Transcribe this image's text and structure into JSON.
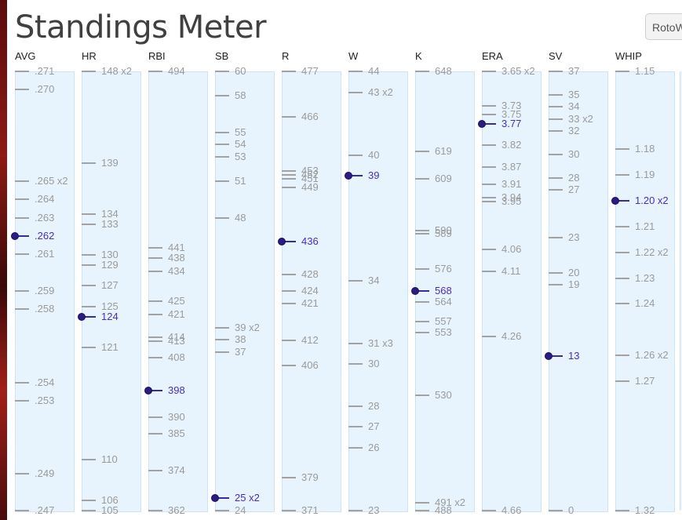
{
  "page": {
    "title": "Standings Meter"
  },
  "header": {
    "button_label": "RotoW"
  },
  "meter": {
    "range_top": 91,
    "range_bottom": 651,
    "columns": [
      {
        "key": "avg",
        "label": "AVG",
        "values": [
          {
            "text": ".271",
            "v": 0.271
          },
          {
            "text": ".270",
            "v": 0.27
          },
          {
            "text": ".265 x2",
            "v": 0.265
          },
          {
            "text": ".264",
            "v": 0.264
          },
          {
            "text": ".263",
            "v": 0.263
          },
          {
            "text": ".262",
            "v": 0.262,
            "mine": true
          },
          {
            "text": ".261",
            "v": 0.261
          },
          {
            "text": ".259",
            "v": 0.259
          },
          {
            "text": ".258",
            "v": 0.258
          },
          {
            "text": ".254",
            "v": 0.254
          },
          {
            "text": ".253",
            "v": 0.253
          },
          {
            "text": ".249",
            "v": 0.249
          },
          {
            "text": ".247",
            "v": 0.247
          }
        ]
      },
      {
        "key": "hr",
        "label": "HR",
        "values": [
          {
            "text": "148 x2",
            "v": 148
          },
          {
            "text": "139",
            "v": 139
          },
          {
            "text": "134",
            "v": 134
          },
          {
            "text": "133",
            "v": 133
          },
          {
            "text": "130",
            "v": 130
          },
          {
            "text": "129",
            "v": 129
          },
          {
            "text": "127",
            "v": 127
          },
          {
            "text": "125",
            "v": 125
          },
          {
            "text": "124",
            "v": 124,
            "mine": true
          },
          {
            "text": "121",
            "v": 121
          },
          {
            "text": "110",
            "v": 110
          },
          {
            "text": "106",
            "v": 106
          },
          {
            "text": "105",
            "v": 105
          }
        ]
      },
      {
        "key": "rbi",
        "label": "RBI",
        "values": [
          {
            "text": "494",
            "v": 494
          },
          {
            "text": "441",
            "v": 441
          },
          {
            "text": "438",
            "v": 438
          },
          {
            "text": "434",
            "v": 434
          },
          {
            "text": "425",
            "v": 425
          },
          {
            "text": "421",
            "v": 421
          },
          {
            "text": "414",
            "v": 414
          },
          {
            "text": "413",
            "v": 413
          },
          {
            "text": "408",
            "v": 408
          },
          {
            "text": "398",
            "v": 398,
            "mine": true
          },
          {
            "text": "390",
            "v": 390
          },
          {
            "text": "385",
            "v": 385
          },
          {
            "text": "374",
            "v": 374
          },
          {
            "text": "362",
            "v": 362
          }
        ]
      },
      {
        "key": "sb",
        "label": "SB",
        "values": [
          {
            "text": "60",
            "v": 60
          },
          {
            "text": "58",
            "v": 58
          },
          {
            "text": "55",
            "v": 55
          },
          {
            "text": "54",
            "v": 54
          },
          {
            "text": "53",
            "v": 53
          },
          {
            "text": "51",
            "v": 51
          },
          {
            "text": "48",
            "v": 48
          },
          {
            "text": "39 x2",
            "v": 39
          },
          {
            "text": "38",
            "v": 38
          },
          {
            "text": "37",
            "v": 37
          },
          {
            "text": "25 x2",
            "v": 25,
            "mine": true
          },
          {
            "text": "24",
            "v": 24
          }
        ]
      },
      {
        "key": "r",
        "label": "R",
        "values": [
          {
            "text": "477",
            "v": 477
          },
          {
            "text": "466",
            "v": 466
          },
          {
            "text": "453",
            "v": 453
          },
          {
            "text": "452",
            "v": 452
          },
          {
            "text": "451",
            "v": 451
          },
          {
            "text": "449",
            "v": 449
          },
          {
            "text": "436",
            "v": 436,
            "mine": true
          },
          {
            "text": "428",
            "v": 428
          },
          {
            "text": "424",
            "v": 424
          },
          {
            "text": "421",
            "v": 421
          },
          {
            "text": "412",
            "v": 412
          },
          {
            "text": "406",
            "v": 406
          },
          {
            "text": "379",
            "v": 379
          },
          {
            "text": "371",
            "v": 371
          }
        ]
      },
      {
        "key": "w",
        "label": "W",
        "values": [
          {
            "text": "44",
            "v": 44
          },
          {
            "text": "43 x2",
            "v": 43
          },
          {
            "text": "40",
            "v": 40
          },
          {
            "text": "39",
            "v": 39,
            "mine": true
          },
          {
            "text": "34",
            "v": 34
          },
          {
            "text": "31 x3",
            "v": 31
          },
          {
            "text": "30",
            "v": 30
          },
          {
            "text": "28",
            "v": 28
          },
          {
            "text": "27",
            "v": 27
          },
          {
            "text": "26",
            "v": 26
          },
          {
            "text": "23",
            "v": 23
          }
        ]
      },
      {
        "key": "k",
        "label": "K",
        "values": [
          {
            "text": "648",
            "v": 648
          },
          {
            "text": "619",
            "v": 619
          },
          {
            "text": "609",
            "v": 609
          },
          {
            "text": "590",
            "v": 590
          },
          {
            "text": "589",
            "v": 589
          },
          {
            "text": "576",
            "v": 576
          },
          {
            "text": "568",
            "v": 568,
            "mine": true
          },
          {
            "text": "564",
            "v": 564
          },
          {
            "text": "557",
            "v": 557
          },
          {
            "text": "553",
            "v": 553
          },
          {
            "text": "530",
            "v": 530
          },
          {
            "text": "491 x2",
            "v": 491
          },
          {
            "text": "488",
            "v": 488
          }
        ]
      },
      {
        "key": "era",
        "label": "ERA",
        "values": [
          {
            "text": "3.65 x2",
            "v": 3.65
          },
          {
            "text": "3.73",
            "v": 3.73
          },
          {
            "text": "3.75",
            "v": 3.75
          },
          {
            "text": "3.77",
            "v": 3.77,
            "mine": true
          },
          {
            "text": "3.82",
            "v": 3.82
          },
          {
            "text": "3.87",
            "v": 3.87
          },
          {
            "text": "3.91",
            "v": 3.91
          },
          {
            "text": "3.94",
            "v": 3.94
          },
          {
            "text": "3.95",
            "v": 3.95
          },
          {
            "text": "4.06",
            "v": 4.06
          },
          {
            "text": "4.11",
            "v": 4.11
          },
          {
            "text": "4.26",
            "v": 4.26
          },
          {
            "text": "4.66",
            "v": 4.66
          }
        ]
      },
      {
        "key": "sv",
        "label": "SV",
        "values": [
          {
            "text": "37",
            "v": 37
          },
          {
            "text": "35",
            "v": 35
          },
          {
            "text": "34",
            "v": 34
          },
          {
            "text": "33 x2",
            "v": 33
          },
          {
            "text": "32",
            "v": 32
          },
          {
            "text": "30",
            "v": 30
          },
          {
            "text": "28",
            "v": 28
          },
          {
            "text": "27",
            "v": 27
          },
          {
            "text": "23",
            "v": 23
          },
          {
            "text": "20",
            "v": 20
          },
          {
            "text": "19",
            "v": 19
          },
          {
            "text": "13",
            "v": 13,
            "mine": true
          },
          {
            "text": "0",
            "v": 0
          }
        ]
      },
      {
        "key": "whip",
        "label": "WHIP",
        "values": [
          {
            "text": "1.15",
            "v": 1.15
          },
          {
            "text": "1.18",
            "v": 1.18
          },
          {
            "text": "1.19",
            "v": 1.19
          },
          {
            "text": "1.20 x2",
            "v": 1.2,
            "mine": true
          },
          {
            "text": "1.21",
            "v": 1.21
          },
          {
            "text": "1.22 x2",
            "v": 1.22
          },
          {
            "text": "1.23",
            "v": 1.23
          },
          {
            "text": "1.24",
            "v": 1.24
          },
          {
            "text": "1.26 x2",
            "v": 1.26
          },
          {
            "text": "1.27",
            "v": 1.27
          },
          {
            "text": "1.32",
            "v": 1.32
          }
        ]
      }
    ]
  },
  "colors": {
    "bar_bg": "#e8f4fd",
    "tick": "#a2a2a2",
    "mine": "#4a2bbf",
    "tick_text": "#9a9a9a"
  }
}
